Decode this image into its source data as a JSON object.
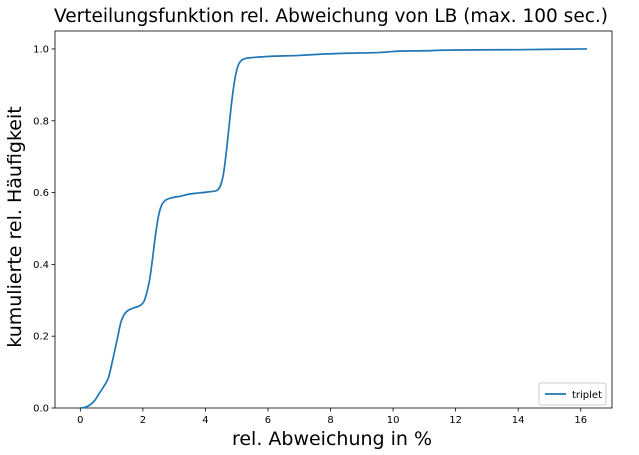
{
  "chart_data": {
    "type": "line",
    "title": "Verteilungsfunktion rel. Abweichung von LB (max. 100 sec.)",
    "xlabel": "rel. Abweichung in %",
    "ylabel": "kumulierte rel. Häufigkeit",
    "xlim": [
      -0.81,
      17.0
    ],
    "ylim": [
      0.0,
      1.05
    ],
    "xticks": [
      0,
      2,
      4,
      6,
      8,
      10,
      12,
      14,
      16
    ],
    "yticks": [
      0.0,
      0.2,
      0.4,
      0.6,
      0.8,
      1.0
    ],
    "xtick_labels": [
      "0",
      "2",
      "4",
      "6",
      "8",
      "10",
      "12",
      "14",
      "16"
    ],
    "ytick_labels": [
      "0.0",
      "0.2",
      "0.4",
      "0.6",
      "0.8",
      "1.0"
    ],
    "grid": false,
    "legend_position": "lower right",
    "series": [
      {
        "name": "triplet",
        "color": "#1f77b4",
        "x": [
          0.0,
          0.15,
          0.3,
          0.45,
          0.6,
          0.75,
          0.9,
          1.05,
          1.2,
          1.3,
          1.4,
          1.5,
          1.6,
          1.75,
          1.9,
          2.05,
          2.2,
          2.3,
          2.4,
          2.5,
          2.6,
          2.7,
          2.8,
          2.9,
          3.0,
          3.2,
          3.5,
          3.8,
          4.1,
          4.4,
          4.55,
          4.65,
          4.75,
          4.85,
          4.95,
          5.05,
          5.15,
          5.3,
          5.5,
          5.8,
          6.2,
          7.0,
          7.8,
          8.5,
          9.5,
          10.2,
          11.0,
          12.0,
          14.0,
          16.2
        ],
        "y": [
          0.0,
          0.002,
          0.008,
          0.02,
          0.04,
          0.06,
          0.085,
          0.14,
          0.2,
          0.24,
          0.26,
          0.27,
          0.275,
          0.28,
          0.285,
          0.3,
          0.35,
          0.41,
          0.48,
          0.535,
          0.565,
          0.577,
          0.582,
          0.585,
          0.587,
          0.59,
          0.596,
          0.599,
          0.602,
          0.608,
          0.64,
          0.7,
          0.78,
          0.86,
          0.92,
          0.955,
          0.968,
          0.974,
          0.976,
          0.978,
          0.98,
          0.982,
          0.986,
          0.988,
          0.99,
          0.994,
          0.995,
          0.997,
          0.998,
          1.0
        ]
      }
    ]
  }
}
